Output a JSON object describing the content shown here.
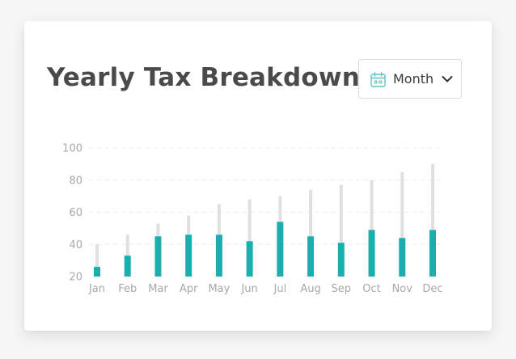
{
  "header": {
    "title": "Yearly Tax Breakdown"
  },
  "period_select": {
    "icon": "calendar-icon",
    "value": "Month",
    "caret_icon": "chevron-down-icon"
  },
  "colors": {
    "accent": "#1aaeae",
    "track": "#e0e0e0",
    "grid": "#ececec",
    "icon_teal": "#5cc5c4"
  },
  "chart_data": {
    "type": "bar",
    "title": "",
    "xlabel": "",
    "ylabel": "",
    "ylim": [
      20,
      100
    ],
    "yticks": [
      20,
      40,
      60,
      80,
      100
    ],
    "grid": true,
    "categories": [
      "Jan",
      "Feb",
      "Mar",
      "Apr",
      "May",
      "Jun",
      "Jul",
      "Aug",
      "Sep",
      "Oct",
      "Nov",
      "Dec"
    ],
    "series": [
      {
        "values": [
          40,
          46,
          53,
          58,
          65,
          68,
          70,
          74,
          77,
          80,
          85,
          90
        ]
      },
      {
        "values": [
          26,
          33,
          45,
          46,
          46,
          42,
          54,
          45,
          41,
          49,
          44,
          49
        ]
      }
    ]
  }
}
